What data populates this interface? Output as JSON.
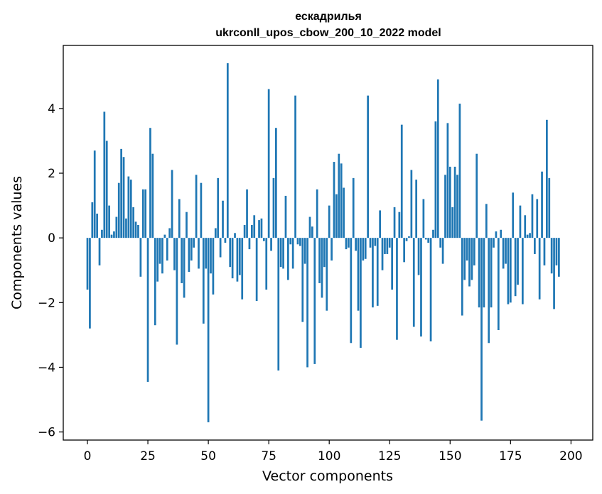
{
  "chart_data": {
    "type": "bar",
    "title_line1": "ескадрилья",
    "title_line2": "ukrconll_upos_cbow_200_10_2022 model",
    "xlabel": "Vector components",
    "ylabel": "Components values",
    "xlim": [
      -10,
      209
    ],
    "ylim": [
      -6.25,
      5.95
    ],
    "xticks": [
      0,
      25,
      50,
      75,
      100,
      125,
      150,
      175,
      200
    ],
    "yticks": [
      -6,
      -4,
      -2,
      0,
      2,
      4
    ],
    "ytick_labels": [
      "−6",
      "−4",
      "−2",
      "0",
      "2",
      "4"
    ],
    "bar_color": "#1f77b4",
    "values": [
      -1.6,
      -2.8,
      1.1,
      2.7,
      0.75,
      -0.85,
      0.25,
      3.9,
      3.0,
      1.0,
      0.1,
      0.2,
      0.65,
      1.7,
      2.75,
      2.5,
      0.6,
      1.9,
      1.8,
      0.95,
      0.5,
      0.4,
      -1.2,
      1.5,
      1.5,
      -4.45,
      3.4,
      2.6,
      -2.7,
      -1.35,
      -0.8,
      -1.1,
      0.1,
      -0.7,
      0.3,
      2.1,
      -1.0,
      -3.3,
      1.2,
      -1.4,
      -1.85,
      0.8,
      -1.05,
      -0.7,
      -0.3,
      1.95,
      -0.95,
      1.7,
      -2.65,
      -0.95,
      -5.7,
      -1.1,
      -1.75,
      0.3,
      1.85,
      -0.6,
      1.15,
      -0.15,
      5.4,
      -0.9,
      -1.25,
      0.15,
      -1.35,
      -1.15,
      -1.9,
      0.4,
      1.5,
      -0.35,
      0.4,
      0.7,
      -1.95,
      0.55,
      0.6,
      -0.1,
      -1.6,
      4.6,
      -0.4,
      1.85,
      3.4,
      -4.1,
      -0.9,
      -0.95,
      1.3,
      -1.3,
      -0.2,
      -0.95,
      4.4,
      -0.2,
      -0.25,
      -2.6,
      -0.8,
      -4.0,
      0.65,
      0.35,
      -3.9,
      1.5,
      -1.4,
      -1.85,
      -0.9,
      -2.25,
      1.0,
      -0.7,
      2.35,
      1.35,
      2.6,
      2.3,
      1.55,
      -0.35,
      -0.3,
      -3.25,
      1.85,
      -0.4,
      -2.25,
      -3.4,
      -0.7,
      -0.65,
      4.4,
      -0.3,
      -2.15,
      -0.25,
      -2.1,
      0.85,
      -1.0,
      -0.5,
      -0.5,
      -0.3,
      -1.6,
      0.95,
      -3.15,
      0.8,
      3.5,
      -0.75,
      -0.1,
      0.05,
      2.1,
      -2.75,
      1.8,
      -1.15,
      -3.05,
      1.2,
      -0.05,
      -0.15,
      -3.2,
      0.25,
      3.6,
      4.9,
      -0.3,
      -0.8,
      1.95,
      3.55,
      2.2,
      0.95,
      2.2,
      1.95,
      4.15,
      -2.4,
      -1.3,
      -0.7,
      -1.5,
      -1.3,
      -0.85,
      2.6,
      -2.15,
      -5.65,
      -2.15,
      1.05,
      -3.25,
      -2.15,
      -0.3,
      0.2,
      -2.85,
      0.25,
      -0.95,
      -0.8,
      -2.05,
      -2.0,
      1.4,
      -1.8,
      -1.45,
      1.0,
      -2.05,
      0.7,
      0.1,
      0.15,
      1.35,
      -0.5,
      1.2,
      -1.9,
      2.05,
      -0.85,
      3.65,
      1.85,
      -1.1,
      -2.2,
      -0.85,
      -1.2
    ]
  }
}
